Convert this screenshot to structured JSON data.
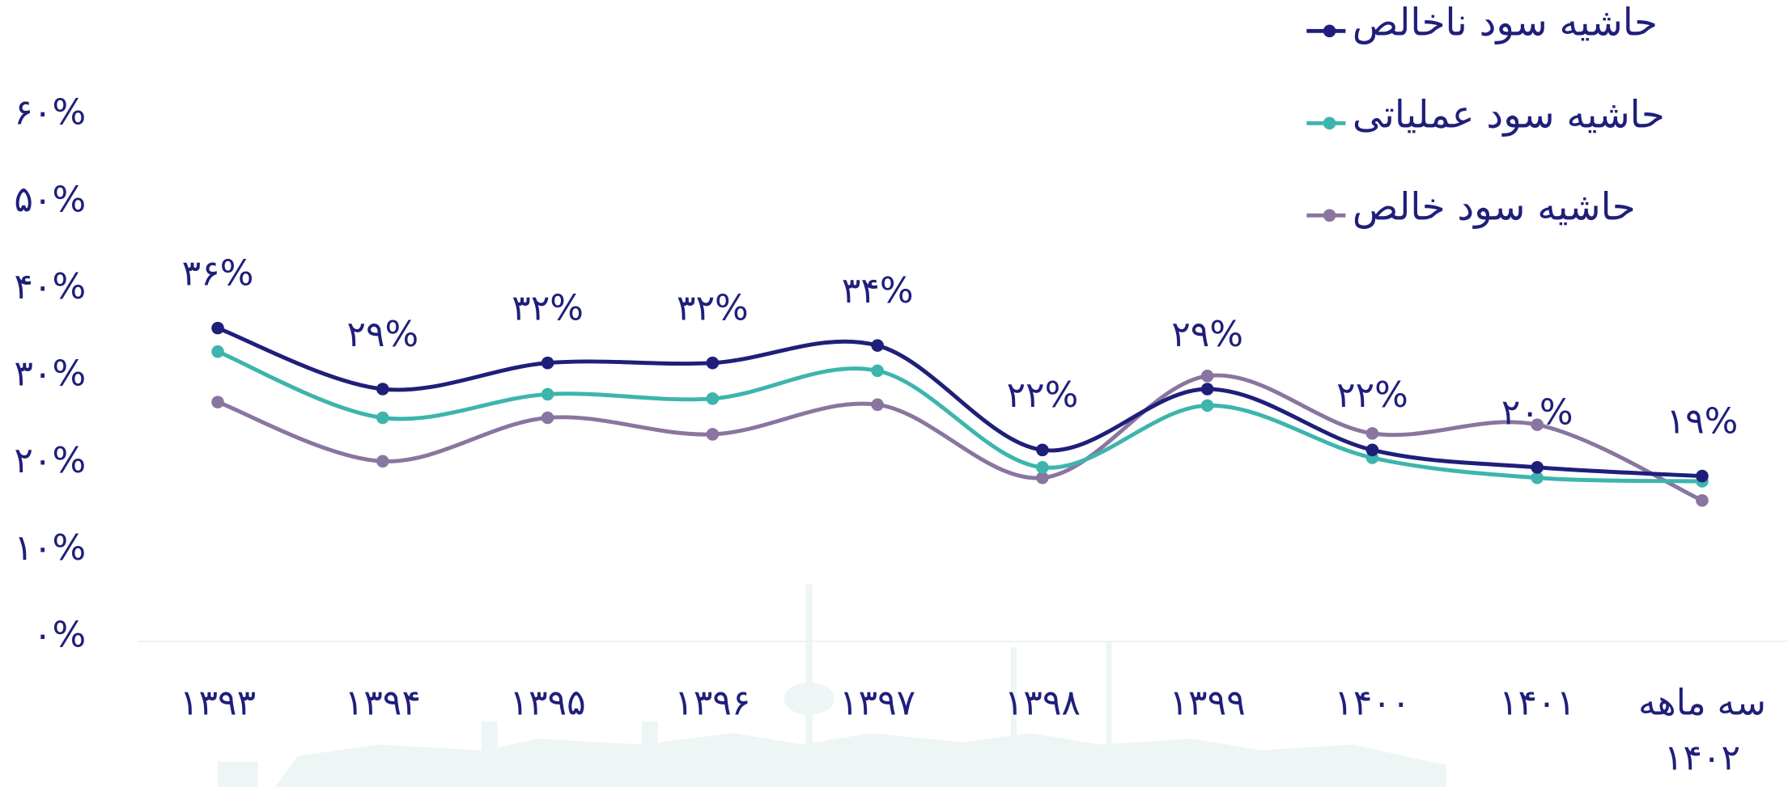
{
  "chart_data": {
    "type": "line",
    "categories": [
      "۱۳۹۳",
      "۱۳۹۴",
      "۱۳۹۵",
      "۱۳۹۶",
      "۱۳۹۷",
      "۱۳۹۸",
      "۱۳۹۹",
      "۱۴۰۰",
      "۱۴۰۱",
      "سه ماهه ۱۴۰۲"
    ],
    "series": [
      {
        "name": "حاشیه سود ناخالص",
        "color": "#1f1f7a",
        "values": [
          36,
          29,
          32,
          32,
          34,
          22,
          29,
          22,
          20,
          19
        ],
        "value_labels": [
          "۳۶%",
          "۲۹%",
          "۳۲%",
          "۳۲%",
          "۳۴%",
          "۲۲%",
          "۲۹%",
          "۲۲%",
          "۲۰%",
          "۱۹%"
        ]
      },
      {
        "name": "حاشیه سود عملیاتی",
        "color": "#3db5ad",
        "values": [
          33.3,
          25.7,
          28.4,
          27.9,
          31.1,
          20.0,
          27.1,
          21.1,
          18.8,
          18.4
        ]
      },
      {
        "name": "حاشیه سود خالص",
        "color": "#8a75a0",
        "values": [
          27.5,
          20.7,
          25.7,
          23.8,
          27.2,
          18.8,
          30.5,
          23.9,
          24.9,
          16.2
        ]
      }
    ],
    "ylim": [
      0,
      60
    ],
    "yticks": [
      {
        "value": 0,
        "label": "۰%"
      },
      {
        "value": 10,
        "label": "۱۰%"
      },
      {
        "value": 20,
        "label": "۲۰%"
      },
      {
        "value": 30,
        "label": "۳۰%"
      },
      {
        "value": 40,
        "label": "۴۰%"
      },
      {
        "value": 50,
        "label": "۵۰%"
      },
      {
        "value": 60,
        "label": "۶۰%"
      }
    ],
    "grid": false,
    "legend": "top-right"
  }
}
